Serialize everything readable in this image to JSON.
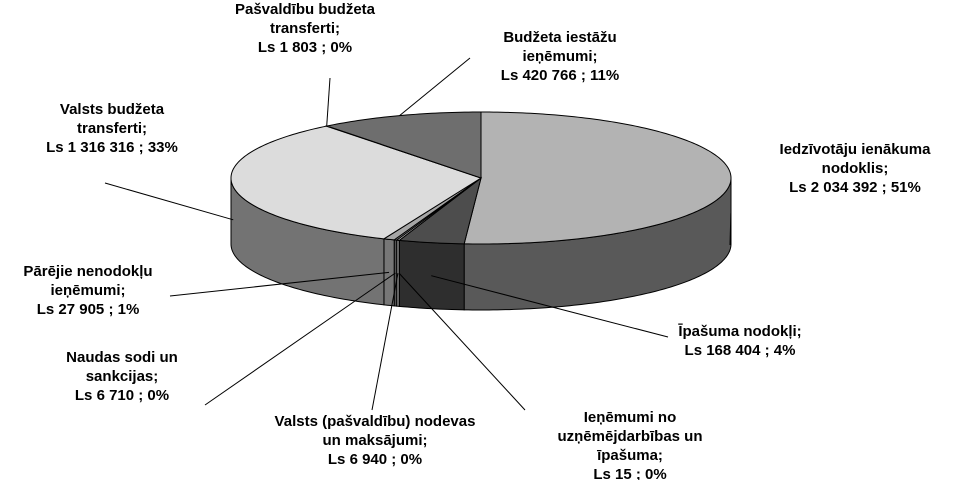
{
  "chart_data": {
    "type": "pie3d",
    "categories": [
      "Iedzīvotāju ienākuma nodoklis;",
      "Īpašuma nodokļi;",
      "Ieņēmumi no uzņēmējdarbības un īpašuma;",
      "Valsts (pašvaldību) nodevas un maksājumi;",
      "Naudas sodi un sankcijas;",
      "Pārējie nenodokļu ieņēmumi;",
      "Valsts budžeta transferti;",
      "Pašvaldību budžeta transferti;",
      "Budžeta iestāžu ieņēmumi;"
    ],
    "values": [
      2034392,
      168404,
      15,
      6940,
      6710,
      27905,
      1316316,
      1803,
      420766
    ],
    "value_labels": [
      "Ls 2 034 392 ; 51%",
      "Ls 168 404 ; 4%",
      "Ls 15 ; 0%",
      "Ls 6 940 ; 0%",
      "Ls 6 710 ; 0%",
      "Ls 27 905 ; 1%",
      "Ls 1 316 316 ; 33%",
      "Ls 1 803 ; 0%",
      "Ls 420 766 ; 11%"
    ],
    "colors": [
      "#b3b3b3",
      "#4d4d4d",
      "#999999",
      "#cccccc",
      "#808080",
      "#a6a6a6",
      "#dcdcdc",
      "#e6e6e6",
      "#6e6e6e"
    ],
    "side_colors": [
      "#595959",
      "#2e2e2e",
      "#666666",
      "#888888",
      "#555555",
      "#777777",
      "#737373",
      "#999999",
      "#444444"
    ]
  }
}
